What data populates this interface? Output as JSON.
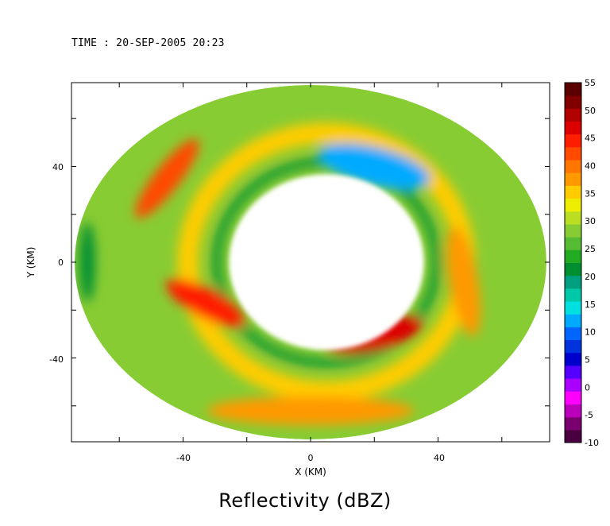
{
  "header": {
    "time_label": "TIME : 20-SEP-2005 20:23"
  },
  "title": "Reflectivity (dBZ)",
  "chart_data": {
    "type": "heatmap",
    "title": "Reflectivity (dBZ)",
    "xlabel": "X (KM)",
    "ylabel": "Y (KM)",
    "xlim": [
      -75,
      75
    ],
    "ylim": [
      -75,
      75
    ],
    "x_ticks": [
      -40,
      0,
      40
    ],
    "y_ticks": [
      40,
      0,
      -40
    ],
    "grid": false,
    "data_extent": {
      "shape": "ellipse",
      "x_half_width_km": 74,
      "y_half_width_km": 74
    },
    "colorbar": {
      "label_values": [
        55,
        50,
        45,
        40,
        35,
        30,
        25,
        20,
        15,
        10,
        5,
        0,
        -5,
        -10
      ],
      "range": [
        -10,
        55
      ],
      "colors": [
        "#4a0040",
        "#7a0070",
        "#bb00bb",
        "#ff00ff",
        "#aa00ff",
        "#5500ff",
        "#0000cc",
        "#0033dd",
        "#0066ff",
        "#00aaff",
        "#00e0e0",
        "#00c8a8",
        "#009f80",
        "#008f30",
        "#22aa22",
        "#55bb33",
        "#88cc33",
        "#bbdd22",
        "#eeee00",
        "#ffcc00",
        "#ff9900",
        "#ff7700",
        "#ff4a00",
        "#ff1e00",
        "#dd0000",
        "#b00000",
        "#800000",
        "#5a0000"
      ]
    },
    "eye": {
      "center_km": [
        5,
        0
      ],
      "approx_radius_km": 30,
      "value": "no echo"
    },
    "features": [
      {
        "name": "eyewall max (south-southeast)",
        "center_km": [
          20,
          -30
        ],
        "dbz": 47
      },
      {
        "name": "eyewall max (southwest)",
        "center_km": [
          -33,
          -17
        ],
        "dbz": 45
      },
      {
        "name": "outer rainband (northwest)",
        "center_km": [
          -45,
          35
        ],
        "dbz": 42
      },
      {
        "name": "weak echo region (north)",
        "center_km": [
          20,
          40
        ],
        "dbz": 12
      }
    ]
  }
}
